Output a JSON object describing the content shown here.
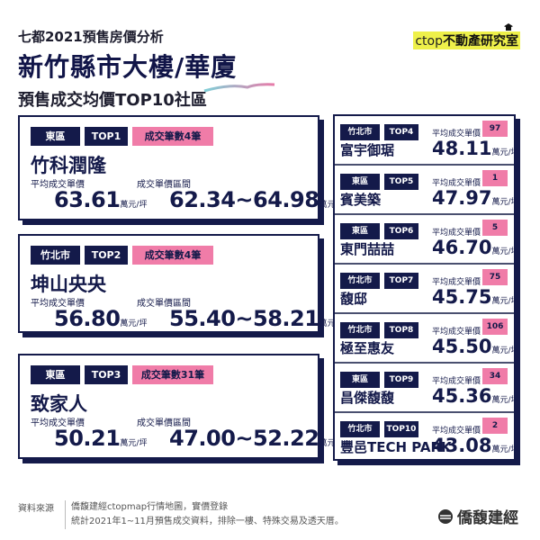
{
  "header": {
    "super_title": "七都2021預售房價分析",
    "title": "新竹縣市大樓/華廈",
    "subtitle": "預售成交均價TOP10社區",
    "logo_prefix": "ctop",
    "logo_text": "不動產研究室"
  },
  "labels": {
    "avg": "平均成交單價",
    "range": "成交單價區間",
    "unit": "萬元/坪"
  },
  "colors": {
    "navy": "#141a4a",
    "pink": "#f07ca8",
    "logo_bg": "#eef04a"
  },
  "top3": [
    {
      "area": "東區",
      "rank": "TOP1",
      "count": "成交筆數4筆",
      "name": "竹科潤隆",
      "avg": "63.61",
      "range": "62.34~64.98"
    },
    {
      "area": "竹北市",
      "rank": "TOP2",
      "count": "成交筆數4筆",
      "name": "坤山央央",
      "avg": "56.80",
      "range": "55.40~58.21"
    },
    {
      "area": "東區",
      "rank": "TOP3",
      "count": "成交筆數31筆",
      "name": "致家人",
      "avg": "50.21",
      "range": "47.00~52.22"
    }
  ],
  "others": [
    {
      "area": "竹北市",
      "rank": "TOP4",
      "name": "富宇御琚",
      "avg": "48.11",
      "count": "97"
    },
    {
      "area": "東區",
      "rank": "TOP5",
      "name": "賓美築",
      "avg": "47.97",
      "count": "1"
    },
    {
      "area": "東區",
      "rank": "TOP6",
      "name": "東門喆喆",
      "avg": "46.70",
      "count": "5"
    },
    {
      "area": "竹北市",
      "rank": "TOP7",
      "name": "馥邸",
      "avg": "45.75",
      "count": "75"
    },
    {
      "area": "竹北市",
      "rank": "TOP8",
      "name": "極至惠友",
      "avg": "45.50",
      "count": "106"
    },
    {
      "area": "東區",
      "rank": "TOP9",
      "name": "昌傑馥馥",
      "avg": "45.36",
      "count": "34"
    },
    {
      "area": "竹北市",
      "rank": "TOP10",
      "name": "豐邑TECH PARK",
      "avg": "43.08",
      "count": "2"
    }
  ],
  "footer": {
    "source_label": "資料來源",
    "line1": "僑馥建經ctopmap行情地圖，實價登錄",
    "line2": "統計2021年1~11月預售成交資料，排除一樓、特殊交易及透天厝。",
    "brand": "僑馥建經"
  }
}
